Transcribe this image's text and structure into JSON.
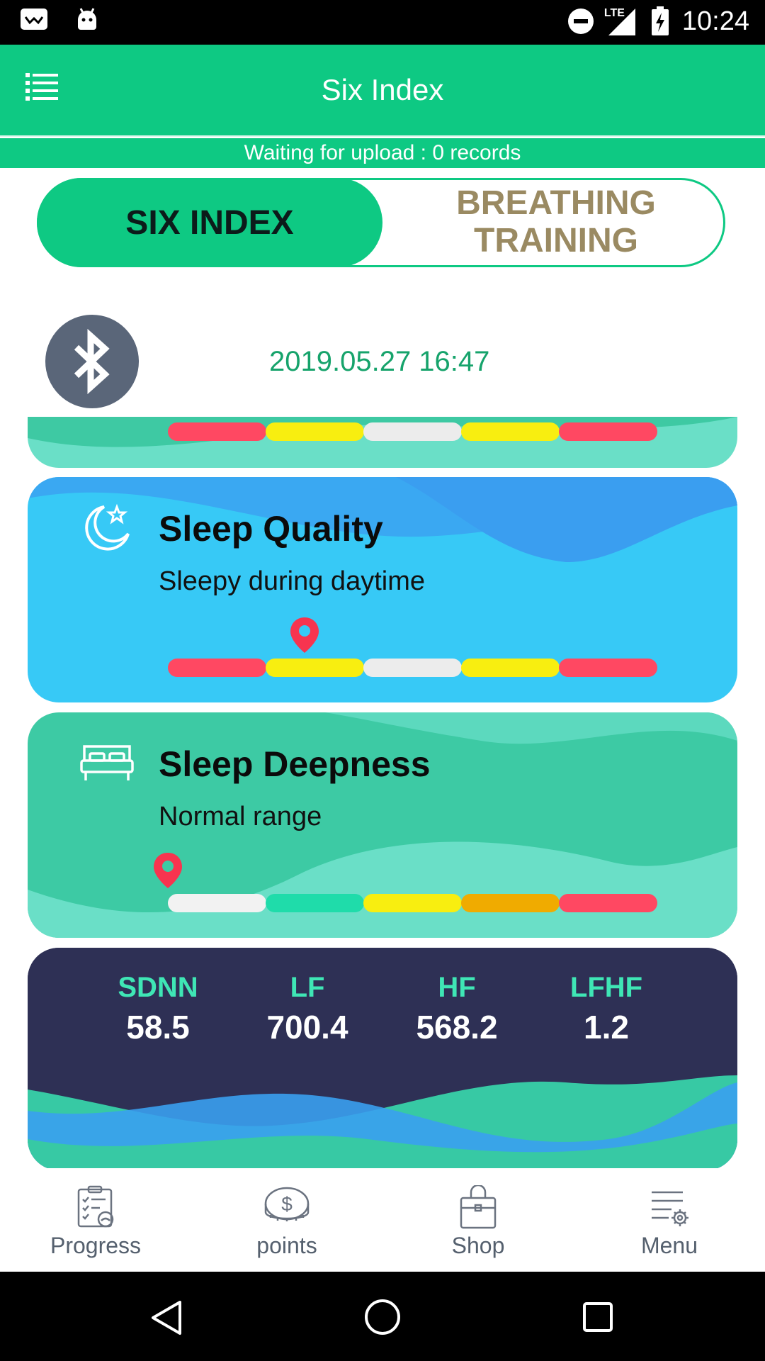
{
  "status_bar": {
    "time": "10:24",
    "network": "LTE"
  },
  "app_bar": {
    "title": "Six Index"
  },
  "upload_status": "Waiting for upload : 0 records",
  "tabs": [
    {
      "label": "SIX INDEX",
      "active": true
    },
    {
      "label": "BREATHING TRAINING",
      "active": false
    }
  ],
  "measurement": {
    "datetime": "2019.05.27 16:47",
    "bluetooth_icon": "bluetooth-icon"
  },
  "cards": {
    "top_partial": {
      "scale_colors": [
        "#ff4862",
        "#f8ee10",
        "#ececec",
        "#f8ee10",
        "#ff4862"
      ]
    },
    "sleep_quality": {
      "title": "Sleep Quality",
      "status": "Sleepy during daytime",
      "icon": "moon-star-icon",
      "scale_colors": [
        "#ff4862",
        "#f8ee10",
        "#ececec",
        "#f8ee10",
        "#ff4862"
      ],
      "marker_position": 0.28
    },
    "sleep_deepness": {
      "title": "Sleep Deepness",
      "status": "Normal range",
      "icon": "bed-icon",
      "scale_colors": [
        "#f2f2f2",
        "#1fdcaa",
        "#f8ee10",
        "#f0ab00",
        "#ff4862"
      ],
      "marker_position": 0.0
    }
  },
  "metrics": [
    {
      "label": "SDNN",
      "value": "58.5"
    },
    {
      "label": "LF",
      "value": "700.4"
    },
    {
      "label": "HF",
      "value": "568.2"
    },
    {
      "label": "LFHF",
      "value": "1.2"
    }
  ],
  "bottom_nav": [
    {
      "label": "Progress",
      "icon": "progress-clipboard-icon"
    },
    {
      "label": "points",
      "icon": "coins-icon"
    },
    {
      "label": "Shop",
      "icon": "shopping-bag-icon"
    },
    {
      "label": "Menu",
      "icon": "menu-settings-icon"
    }
  ],
  "system_nav": [
    "back-icon",
    "home-icon",
    "recents-icon"
  ],
  "colors": {
    "accent": "#0ec983",
    "marker": "#f7344f",
    "metric_label": "#3fe6b5"
  }
}
